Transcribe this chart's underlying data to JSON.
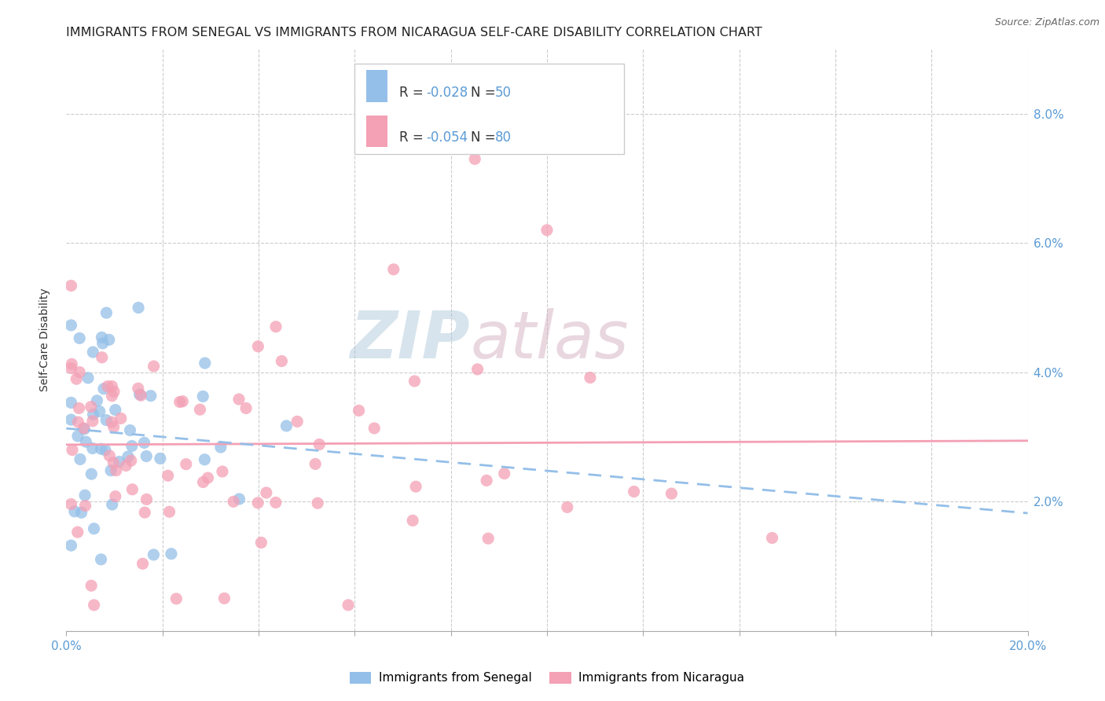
{
  "title": "IMMIGRANTS FROM SENEGAL VS IMMIGRANTS FROM NICARAGUA SELF-CARE DISABILITY CORRELATION CHART",
  "source": "Source: ZipAtlas.com",
  "ylabel": "Self-Care Disability",
  "xlim": [
    0.0,
    0.2
  ],
  "ylim": [
    0.0,
    0.09
  ],
  "ytick_pos": [
    0.02,
    0.04,
    0.06,
    0.08
  ],
  "ytick_labels": [
    "2.0%",
    "4.0%",
    "6.0%",
    "8.0%"
  ],
  "xtick_pos": [
    0.0,
    0.02,
    0.04,
    0.06,
    0.08,
    0.1,
    0.12,
    0.14,
    0.16,
    0.18,
    0.2
  ],
  "xtick_labels": [
    "0.0%",
    "",
    "",
    "",
    "",
    "",
    "",
    "",
    "",
    "",
    "20.0%"
  ],
  "senegal_color": "#94bfe8",
  "nicaragua_color": "#f4a0b5",
  "senegal_R": -0.028,
  "senegal_N": 50,
  "nicaragua_R": -0.054,
  "nicaragua_N": 80,
  "watermark": "ZIPatlas",
  "watermark_color_zip": "#a0c0d8",
  "watermark_color_atlas": "#c0a8b0",
  "legend_label_senegal": "Immigrants from Senegal",
  "legend_label_nicaragua": "Immigrants from Nicaragua",
  "background_color": "#ffffff",
  "grid_color": "#cccccc",
  "title_color": "#222222",
  "axis_label_color": "#5b9bd5",
  "text_color": "#333333",
  "title_fontsize": 11.5,
  "tick_fontsize": 11,
  "legend_fontsize": 12
}
